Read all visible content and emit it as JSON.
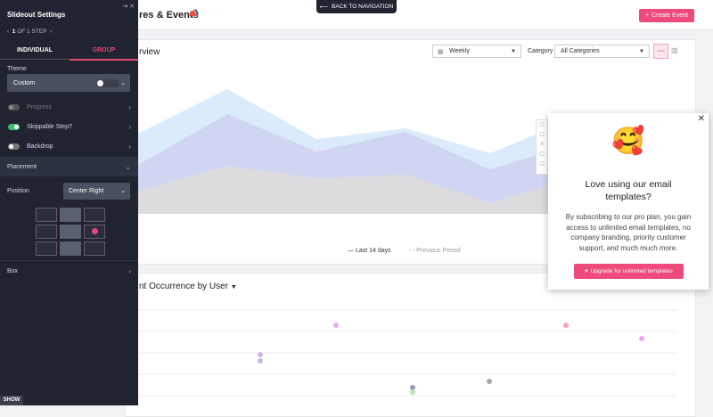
{
  "top": {
    "back_button": "BACK TO NAVIGATION",
    "page_title": "res & Events",
    "create_button": "Create Event"
  },
  "overview": {
    "title": "rview",
    "period": "Weekly",
    "category_label": "Category",
    "category": "All Categories",
    "legend": [
      "Last 14 days",
      "Previous Period"
    ]
  },
  "occurrence": {
    "title": "nt Occurrence by User"
  },
  "sidebar": {
    "title": "Slideout Settings",
    "step_current": "1",
    "step_text": "OF 1 STEP",
    "tabs": [
      "INDIVIDUAL",
      "GROUP"
    ],
    "theme_label": "Theme",
    "theme_value": "Custom",
    "toggles": [
      "Progress",
      "Skippable Step?",
      "Backdrop"
    ],
    "placement": "Placement",
    "position_label": "Position",
    "position_value": "Center Right",
    "box": "Box",
    "show": "SHOW"
  },
  "popup": {
    "heading": "Love using our email templates?",
    "body": "By subscribing to our pro plan, you gain access to unlimited email templates, no company branding, priority customer support, and much much more.",
    "button": "Upgrade for unlimited templates"
  }
}
